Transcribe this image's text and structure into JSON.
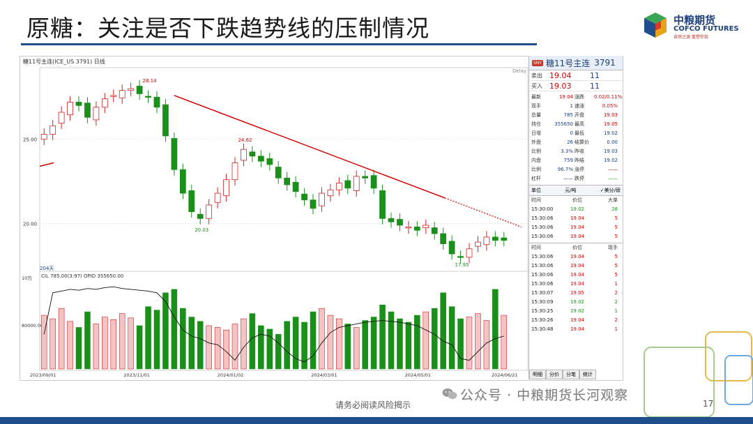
{
  "slide": {
    "title": "原糖：关注是否下跌趋势线的压制情况",
    "footer_note": "请务必阅读风险揭示",
    "watermark": "公众号 · 中粮期货长河观察",
    "page_number": "17"
  },
  "logo": {
    "name_cn": "中粮期货",
    "name_en": "COFCO FUTURES",
    "slogan": "自然之源 重塑你我"
  },
  "chart": {
    "header": "糖11号主连(ICE_US 3791)  日线",
    "delay_label": "Delay",
    "annotations": [
      "28.14",
      "24.62",
      "20.03",
      "17.95"
    ],
    "price_axis": [
      "25.00",
      "20.00"
    ],
    "bar_count_label": "204天",
    "volume_header": "CIL  785.00(3:97)  OPID 355650.00",
    "volume_axis": [
      "10万",
      "80000.00"
    ],
    "date_labels": [
      "2023/09/01",
      "2023/11/01",
      "2024/01/02",
      "2024/03/01",
      "2024/05/01",
      "2024/06/21"
    ],
    "colors": {
      "up": "#d62020",
      "down": "#1a8f1a",
      "trend": "#d40000",
      "oi_line": "#111111"
    }
  },
  "chart_data": {
    "type": "candlestick",
    "title": "",
    "xlabel": "",
    "ylabel": "",
    "x_range": [
      "2023/09/01",
      "2024/06/21"
    ],
    "ylim": [
      17.5,
      29.0
    ],
    "key_points": [
      {
        "label": "28.14",
        "value": 28.14
      },
      {
        "label": "24.62",
        "value": 24.62
      },
      {
        "label": "20.03",
        "value": 20.03
      },
      {
        "label": "17.95",
        "value": 17.95
      }
    ],
    "close_path": [
      25.3,
      25.8,
      26.6,
      27.2,
      27.0,
      26.3,
      26.9,
      27.4,
      27.6,
      27.9,
      28.0,
      27.7,
      27.5,
      26.9,
      25.2,
      23.2,
      21.8,
      20.7,
      20.3,
      21.1,
      21.8,
      22.6,
      23.6,
      24.4,
      24.0,
      23.7,
      23.5,
      22.7,
      22.3,
      21.9,
      21.4,
      20.9,
      21.8,
      22.0,
      22.4,
      22.1,
      22.8,
      22.7,
      22.1,
      20.3,
      20.1,
      19.9,
      19.8,
      19.6,
      19.9,
      19.4,
      18.8,
      18.2,
      18.0,
      18.5,
      18.9,
      19.2,
      19.0,
      19.0
    ],
    "trend_line": {
      "from": 27.6,
      "to": 19.8
    },
    "volume": [
      62,
      58,
      70,
      55,
      48,
      66,
      52,
      60,
      57,
      64,
      59,
      50,
      72,
      68,
      88,
      92,
      70,
      60,
      55,
      50,
      48,
      45,
      52,
      58,
      64,
      50,
      46,
      40,
      55,
      60,
      54,
      66,
      70,
      62,
      58,
      52,
      48,
      56,
      60,
      74,
      66,
      58,
      54,
      62,
      66,
      70,
      88,
      72,
      58,
      60,
      64,
      56,
      92,
      62
    ],
    "open_interest": [
      40,
      88,
      90,
      92,
      91,
      93,
      92,
      94,
      95,
      93,
      92,
      91,
      90,
      88,
      78,
      60,
      45,
      38,
      35,
      30,
      28,
      20,
      10,
      25,
      36,
      40,
      38,
      30,
      20,
      12,
      8,
      15,
      30,
      42,
      48,
      50,
      52,
      54,
      55,
      56,
      55,
      54,
      52,
      50,
      45,
      40,
      32,
      28,
      12,
      10,
      20,
      30,
      35,
      38
    ]
  },
  "quote": {
    "symbol_badge": "SNY",
    "symbol": "糖11号主连",
    "code": "3791",
    "sell": {
      "label": "卖出",
      "price": "19.04",
      "qty": "11"
    },
    "buy": {
      "label": "买入",
      "price": "19.03",
      "qty": "11"
    },
    "stats": [
      {
        "k": "最新",
        "v": "19.04",
        "vc": "#d40000",
        "k2": "涨跌",
        "v2": "0.02/0.11%",
        "v2c": "#d40000"
      },
      {
        "k": "现手",
        "v": "1",
        "vc": "#1c3f7a",
        "k2": "速涨",
        "v2": "0.05%",
        "v2c": "#d40000"
      },
      {
        "k": "总量",
        "v": "785",
        "vc": "#1c3f7a",
        "k2": "开盘",
        "v2": "19.03",
        "v2c": "#d40000"
      },
      {
        "k": "持仓",
        "v": "355650",
        "vc": "#1c3f7a",
        "k2": "最高",
        "v2": "19.05",
        "v2c": "#d40000"
      },
      {
        "k": "日增",
        "v": "0",
        "vc": "#1c3f7a",
        "k2": "最低",
        "v2": "19.02",
        "v2c": "#1c3f7a"
      },
      {
        "k": "外盘",
        "v": "26",
        "vc": "#1c3f7a",
        "k2": "结算价",
        "v2": "0.00",
        "v2c": "#1c3f7a"
      },
      {
        "k": "比例",
        "v": "3.3%",
        "vc": "#1c3f7a",
        "k2": "昨收",
        "v2": "19.03",
        "v2c": "#1c3f7a"
      },
      {
        "k": "内盘",
        "v": "759",
        "vc": "#1c3f7a",
        "k2": "昨结",
        "v2": "19.02",
        "v2c": "#1c3f7a"
      },
      {
        "k": "比例",
        "v": "96.7%",
        "vc": "#1c3f7a",
        "k2": "涨停",
        "v2": "——",
        "v2c": "#d40000"
      },
      {
        "k": "杠杆",
        "v": "——",
        "vc": "#1c3f7a",
        "k2": "跌停",
        "v2": "——",
        "v2c": "#1a8f1a"
      }
    ],
    "unit_label": "单位",
    "unit_value": "元/吨",
    "currency": "✓美分/磅",
    "ticks_head": [
      "时间",
      "价位",
      "大单"
    ],
    "ticks": [
      {
        "t": "15:30:00",
        "p": "19.02",
        "v": "28",
        "c": "#1a8f1a"
      },
      {
        "t": "15:30:06",
        "p": "19.04",
        "v": "5",
        "c": "#d40000"
      },
      {
        "t": "15:30:06",
        "p": "19.04",
        "v": "5",
        "c": "#d40000"
      },
      {
        "t": "15:30:06",
        "p": "19.04",
        "v": "5",
        "c": "#d40000"
      }
    ],
    "trades_head": [
      "时间",
      "价位",
      "现手"
    ],
    "trades": [
      {
        "t": "15:30:06",
        "p": "19.04",
        "v": "5",
        "c": "#d40000"
      },
      {
        "t": "15:30:06",
        "p": "19.04",
        "v": "5",
        "c": "#d40000"
      },
      {
        "t": "15:30:06",
        "p": "19.04",
        "v": "5",
        "c": "#d40000"
      },
      {
        "t": "15:30:06",
        "p": "19.04",
        "v": "1",
        "c": "#d40000"
      },
      {
        "t": "15:30:07",
        "p": "19.05",
        "v": "2",
        "c": "#d40000"
      },
      {
        "t": "15:30:09",
        "p": "19.02",
        "v": "2",
        "c": "#1a8f1a"
      },
      {
        "t": "15:30:25",
        "p": "19.02",
        "v": "1",
        "c": "#1a8f1a"
      },
      {
        "t": "15:30:26",
        "p": "19.04",
        "v": "2",
        "c": "#d40000"
      },
      {
        "t": "15:30:48",
        "p": "19.04",
        "v": "1",
        "c": "#d40000"
      }
    ],
    "tabs": [
      "明细",
      "分价",
      "分笔",
      "统计"
    ]
  }
}
